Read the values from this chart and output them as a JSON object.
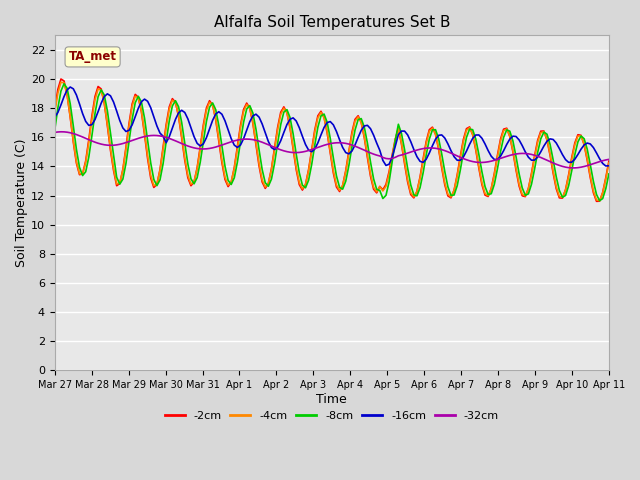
{
  "title": "Alfalfa Soil Temperatures Set B",
  "xlabel": "Time",
  "ylabel": "Soil Temperature (C)",
  "background_color": "#d8d8d8",
  "plot_bg_color": "#e8e8e8",
  "ylim": [
    0,
    23
  ],
  "yticks": [
    0,
    2,
    4,
    6,
    8,
    10,
    12,
    14,
    16,
    18,
    20,
    22
  ],
  "annotation_text": "TA_met",
  "annotation_color": "#8B0000",
  "annotation_bg": "#ffffcc",
  "series": {
    "neg2cm": {
      "label": "-2cm",
      "color": "#ff0000",
      "linewidth": 1.2
    },
    "neg4cm": {
      "label": "-4cm",
      "color": "#ff8800",
      "linewidth": 1.2
    },
    "neg8cm": {
      "label": "-8cm",
      "color": "#00cc00",
      "linewidth": 1.2
    },
    "neg16cm": {
      "label": "-16cm",
      "color": "#0000cc",
      "linewidth": 1.2
    },
    "neg32cm": {
      "label": "-32cm",
      "color": "#aa00aa",
      "linewidth": 1.2
    }
  },
  "xtick_labels": [
    "Mar 27",
    "Mar 28",
    "Mar 29",
    "Mar 30",
    "Mar 31",
    "Apr 1",
    "Apr 2",
    "Apr 3",
    "Apr 4",
    "Apr 5",
    "Apr 6",
    "Apr 7",
    "Apr 8",
    "Apr 9",
    "Apr 10",
    "Apr 11"
  ],
  "days": 15
}
